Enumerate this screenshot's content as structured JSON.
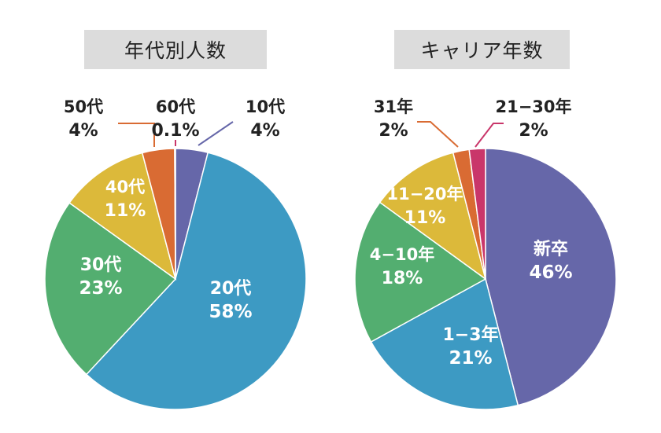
{
  "chart_data": [
    {
      "type": "pie",
      "title": "年代別人数",
      "start_angle_deg": 0,
      "direction": "clockwise",
      "slices": [
        {
          "label": "10代",
          "value": 4,
          "value_label": "4%",
          "color": "#6667a9"
        },
        {
          "label": "20代",
          "value": 58,
          "value_label": "58%",
          "color": "#3d9ac3"
        },
        {
          "label": "30代",
          "value": 23,
          "value_label": "23%",
          "color": "#53ae70"
        },
        {
          "label": "40代",
          "value": 11,
          "value_label": "11%",
          "color": "#dcb93a"
        },
        {
          "label": "50代",
          "value": 4,
          "value_label": "4%",
          "color": "#d96b33"
        },
        {
          "label": "60代",
          "value": 0.1,
          "value_label": "0.1%",
          "color": "#c9366a"
        }
      ]
    },
    {
      "type": "pie",
      "title": "キャリア年数",
      "start_angle_deg": 0,
      "direction": "clockwise",
      "slices": [
        {
          "label": "新卒",
          "value": 46,
          "value_label": "46%",
          "color": "#6667a9"
        },
        {
          "label": "1−3年",
          "value": 21,
          "value_label": "21%",
          "color": "#3d9ac3"
        },
        {
          "label": "4−10年",
          "value": 18,
          "value_label": "18%",
          "color": "#53ae70"
        },
        {
          "label": "11−20年",
          "value": 11,
          "value_label": "11%",
          "color": "#dcb93a"
        },
        {
          "label": "31年",
          "value": 2,
          "value_label": "2%",
          "color": "#d96b33"
        },
        {
          "label": "21−30年",
          "value": 2,
          "value_label": "2%",
          "color": "#c9366a"
        }
      ]
    }
  ]
}
